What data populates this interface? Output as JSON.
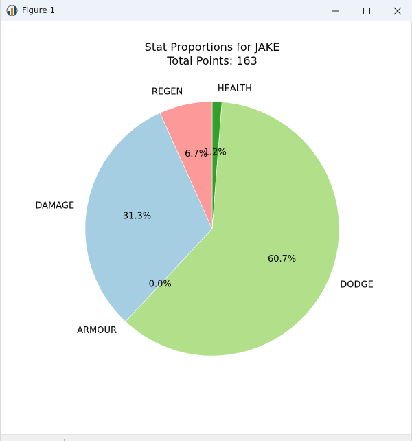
{
  "window": {
    "title": "Figure 1",
    "icons": {
      "app": "matplotlib-figure-icon",
      "minimize": "minimize-icon",
      "maximize": "maximize-icon",
      "close": "close-icon"
    }
  },
  "chart_data": {
    "type": "pie",
    "title": "Stat Proportions for JAKE",
    "subtitle": "Total Points: 163",
    "start_angle_deg": 90,
    "direction": "clockwise",
    "slices": [
      {
        "label": "HEALTH",
        "value": 2,
        "pct_label": "1.2%",
        "color": "#33a02c"
      },
      {
        "label": "DODGE",
        "value": 99,
        "pct_label": "60.7%",
        "color": "#b2df8a"
      },
      {
        "label": "ARMOUR",
        "value": 0,
        "pct_label": "0.0%",
        "color": "#1f78b4"
      },
      {
        "label": "DAMAGE",
        "value": 51,
        "pct_label": "31.3%",
        "color": "#a6cee3"
      },
      {
        "label": "REGEN",
        "value": 11,
        "pct_label": "6.7%",
        "color": "#fb9a99"
      }
    ]
  }
}
